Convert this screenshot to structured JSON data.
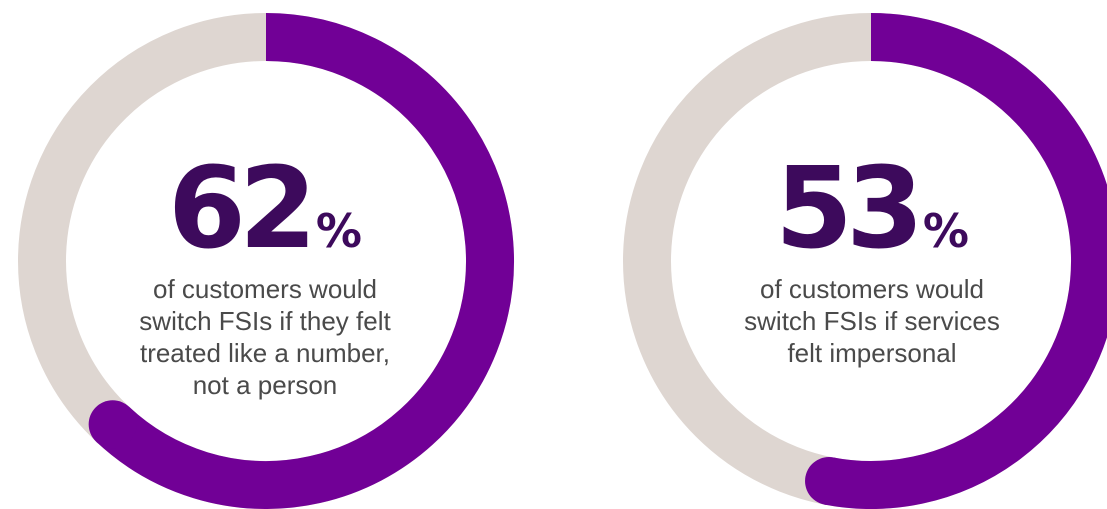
{
  "colors": {
    "accent": "#710096",
    "track": "#ded6d1",
    "number": "#3d0a5c",
    "caption": "#4a4a4a"
  },
  "chart_data": [
    {
      "type": "donut",
      "value": 62,
      "value_label": "62",
      "unit": "%",
      "caption": "of customers would switch FSIs if they felt treated like a number, not a person",
      "caption_lines": [
        "of customers would",
        "switch FSIs if they felt",
        "treated like a number,",
        "not a person"
      ]
    },
    {
      "type": "donut",
      "value": 53,
      "value_label": "53",
      "unit": "%",
      "caption": "of customers would switch FSIs if services felt impersonal",
      "caption_lines": [
        "of customers would",
        "switch FSIs if services",
        "felt impersonal"
      ]
    }
  ]
}
